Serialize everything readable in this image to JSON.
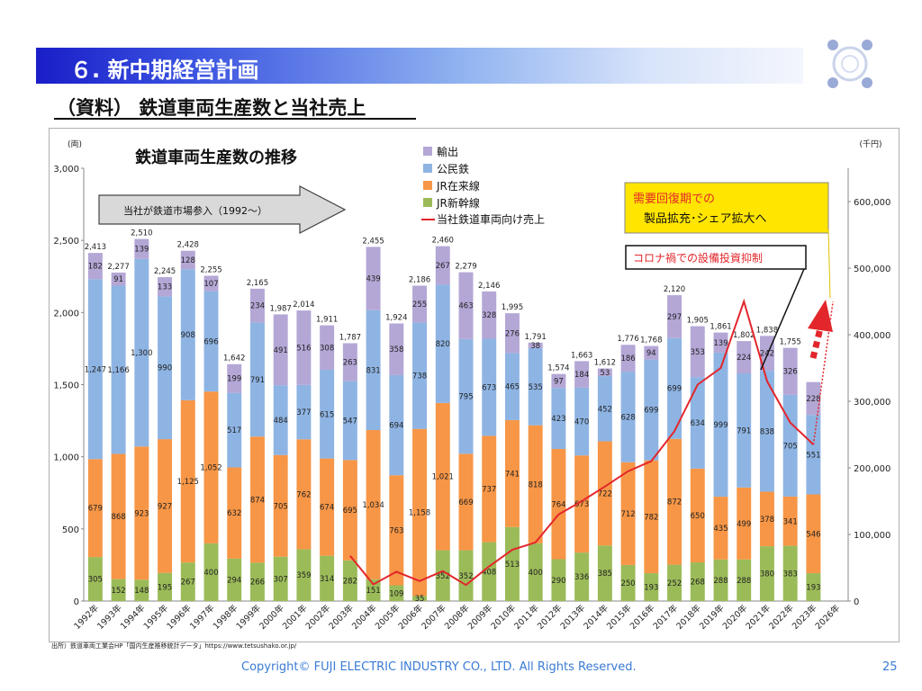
{
  "header": {
    "title": "６. 新中期経営計画"
  },
  "subtitle": "（資料） 鉄道車両生産数と当社売上",
  "source_note": "出所）鉄道車両工業会HP「国内生産推移統計データ」https://www.tetsushako.or.jp/",
  "footer": {
    "copyright": "Copyright© FUJI ELECTRIC INDUSTRY CO., LTD. All Rights Reserved.",
    "page": "25"
  },
  "colors": {
    "export": "#b4a7d6",
    "public_private": "#8eb4e3",
    "jr_conventional": "#f79646",
    "jr_shinkansen": "#9bbb59",
    "sales_line": "#e3262b",
    "arrow_up": "#e3262b",
    "callout_yellow": "#ffe500"
  },
  "chart_data": {
    "type": "bar",
    "stacked": true,
    "title": "鉄道車両生産数の推移",
    "y_left_unit": "(両)",
    "y_right_unit": "(千円)",
    "ylim": [
      0,
      3000
    ],
    "y_left_ticks": [
      "0",
      "500",
      "1,000",
      "1,500",
      "2,000",
      "2,500",
      "3,000"
    ],
    "y2lim": [
      0,
      650000
    ],
    "y_right_ticks": [
      "0",
      "100,000",
      "200,000",
      "300,000",
      "400,000",
      "500,000",
      "600,000"
    ],
    "grid": false,
    "legend_position": "top-center",
    "categories": [
      "1992年",
      "1993年",
      "1994年",
      "1995年",
      "1996年",
      "1997年",
      "1998年",
      "1999年",
      "2000年",
      "2001年",
      "2002年",
      "2003年",
      "2004年",
      "2005年",
      "2006年",
      "2007年",
      "2008年",
      "2009年",
      "2010年",
      "2011年",
      "2012年",
      "2013年",
      "2014年",
      "2015年",
      "2016年",
      "2017年",
      "2018年",
      "2019年",
      "2020年",
      "2021年",
      "2022年",
      "2023年",
      "2026年"
    ],
    "series": [
      {
        "name": "JR新幹線",
        "values": [
          305,
          152,
          148,
          195,
          267,
          400,
          294,
          266,
          307,
          359,
          314,
          282,
          151,
          109,
          35,
          352,
          352,
          408,
          513,
          400,
          290,
          336,
          385,
          250,
          193,
          252,
          268,
          288,
          288,
          380,
          383,
          193,
          null
        ]
      },
      {
        "name": "JR在来線",
        "values": [
          679,
          868,
          923,
          927,
          1125,
          1052,
          632,
          874,
          705,
          762,
          674,
          695,
          1034,
          763,
          1158,
          1021,
          669,
          737,
          741,
          818,
          764,
          673,
          722,
          712,
          782,
          872,
          650,
          435,
          499,
          378,
          341,
          546,
          null
        ]
      },
      {
        "name": "公民鉄",
        "values": [
          1247,
          1166,
          1300,
          990,
          908,
          696,
          517,
          791,
          484,
          377,
          615,
          547,
          831,
          694,
          738,
          820,
          795,
          673,
          465,
          535,
          423,
          470,
          452,
          628,
          699,
          699,
          634,
          999,
          791,
          838,
          705,
          551,
          null
        ]
      },
      {
        "name": "輸出",
        "values": [
          182,
          91,
          139,
          133,
          128,
          107,
          199,
          234,
          491,
          516,
          308,
          263,
          439,
          358,
          255,
          267,
          463,
          328,
          276,
          38,
          97,
          184,
          53,
          186,
          94,
          297,
          353,
          139,
          224,
          242,
          326,
          228,
          null
        ]
      }
    ],
    "totals": [
      "2,413",
      "2,277",
      "2,510",
      "2,245",
      "2,428",
      "2,255",
      "1,642",
      "2,165",
      "1,987",
      "2,014",
      "1,911",
      "1,787",
      "2,455",
      "1,924",
      "2,186",
      "2,460",
      "2,279",
      "2,146",
      "1,995",
      "1,791",
      "1,574",
      "1,663",
      "1,612",
      "1,776",
      "1,768",
      "2,120",
      "1,905",
      "1,861",
      "1,802",
      "1,838",
      "1,755",
      "",
      ""
    ],
    "line_series": {
      "name": "当社鉄道車両向け売上",
      "values": [
        null,
        null,
        null,
        null,
        null,
        null,
        null,
        null,
        null,
        null,
        null,
        68000,
        25000,
        44000,
        30000,
        45000,
        24000,
        52000,
        77000,
        88000,
        130000,
        150000,
        172000,
        195000,
        210000,
        255000,
        325000,
        350000,
        450000,
        330000,
        268000,
        235000,
        null
      ],
      "projection_to": 450000
    },
    "annotations": {
      "market_entry": "当社が鉄道市場参入（1992～）",
      "callout_recovery_1": "需要回復期での",
      "callout_recovery_2": "製品拡充･シェア拡大へ",
      "callout_corona": "コロナ禍での設備投資抑制"
    }
  }
}
